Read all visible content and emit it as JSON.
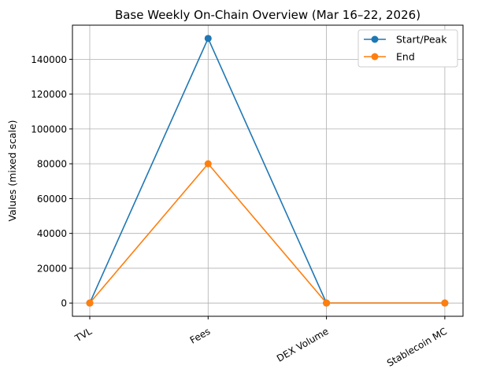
{
  "chart_data": {
    "type": "line",
    "title": "Base Weekly On-Chain Overview (Mar 16–22, 2026)",
    "xlabel": "",
    "ylabel": "Values (mixed scale)",
    "categories": [
      "TVL",
      "Fees",
      "DEX Volume",
      "Stablecoin MC"
    ],
    "series": [
      {
        "name": "Start/Peak",
        "values": [
          0,
          152000,
          0,
          0
        ],
        "color": "#1f77b4"
      },
      {
        "name": "End",
        "values": [
          0,
          80000,
          0,
          0
        ],
        "color": "#ff7f0e"
      }
    ],
    "ylim": [
      -7600,
      159600
    ],
    "yticks": [
      0,
      20000,
      40000,
      60000,
      80000,
      100000,
      120000,
      140000
    ],
    "ytick_labels": [
      "0",
      "20000",
      "40000",
      "60000",
      "80000",
      "100000",
      "120000",
      "140000"
    ],
    "grid": true,
    "legend": "top-right"
  }
}
